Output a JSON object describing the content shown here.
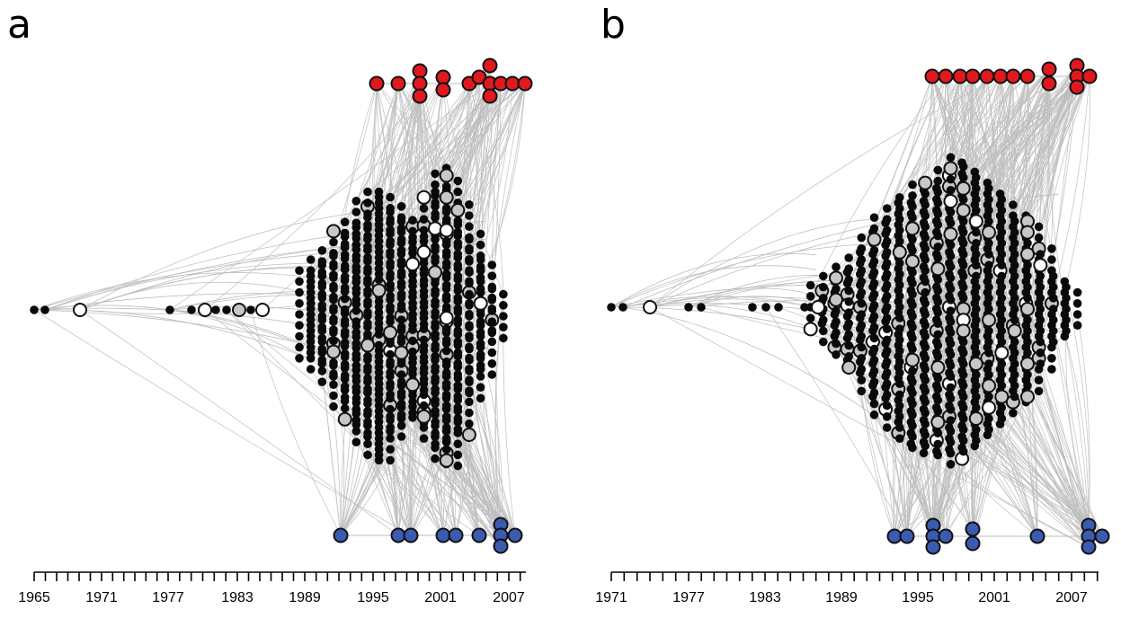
{
  "panels": [
    {
      "letter": "a",
      "axis": {
        "min": 1965,
        "max": 2008,
        "tick_labels": [
          "1965",
          "1971",
          "1977",
          "1983",
          "1989",
          "1995",
          "2001",
          "2007"
        ]
      }
    },
    {
      "letter": "b",
      "axis": {
        "min": 1971,
        "max": 2009,
        "tick_labels": [
          "1971",
          "1977",
          "1983",
          "1989",
          "1995",
          "2001",
          "2007"
        ]
      }
    }
  ],
  "colors": {
    "edge": "#bdbdbd",
    "inner_node": "#0a0a0a",
    "highlight_fill": "#c7c7c7",
    "open_fill": "#ffffff",
    "top_group": "#e0191f",
    "bottom_group": "#3a5bb0",
    "outline": "#111111"
  }
}
